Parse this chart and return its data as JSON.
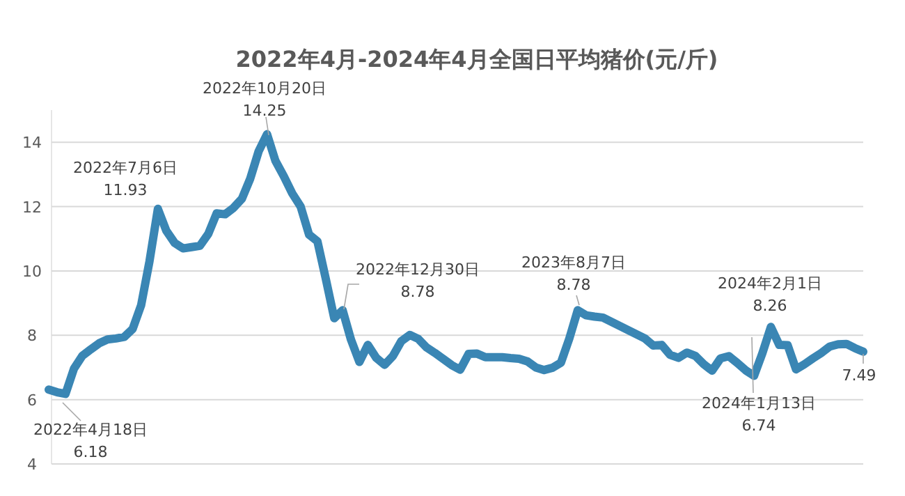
{
  "chart_data": {
    "type": "line",
    "title": "2022年4月-2024年4月全国日平均猪价(元/斤)",
    "grid": "y",
    "tick_labels": "y",
    "ylim": [
      4,
      15
    ],
    "yticks": [
      4,
      6,
      8,
      10,
      12,
      14
    ],
    "categories": [
      null,
      null,
      null,
      null,
      null,
      null,
      null,
      null,
      null,
      null,
      null,
      null,
      null,
      null,
      null,
      null,
      null,
      null,
      null,
      null,
      null,
      null,
      null,
      null,
      null,
      null,
      null,
      null,
      null,
      null,
      null,
      null,
      null,
      null,
      null,
      null,
      null,
      null,
      null,
      null,
      null,
      null,
      null,
      null,
      null,
      null,
      null,
      null,
      null,
      null,
      null,
      null,
      null,
      null,
      null,
      null,
      null,
      null,
      null,
      null,
      null,
      null,
      null,
      null,
      null,
      null,
      null,
      null,
      null,
      null,
      null,
      null,
      null,
      null,
      null,
      null,
      null,
      null,
      null,
      null,
      null,
      null,
      null,
      null,
      null,
      null,
      null,
      null,
      null,
      null,
      null,
      null,
      null,
      null,
      null,
      null,
      null,
      null
    ],
    "series": [
      {
        "color": "#3a86b4",
        "values": [
          6.31,
          6.23,
          6.18,
          6.96,
          7.36,
          7.56,
          7.75,
          7.87,
          7.9,
          7.95,
          8.2,
          8.93,
          10.3,
          11.93,
          11.25,
          10.87,
          10.7,
          10.74,
          10.78,
          11.15,
          11.79,
          11.76,
          11.96,
          12.24,
          12.87,
          13.72,
          14.25,
          13.42,
          12.94,
          12.41,
          12.0,
          11.13,
          10.92,
          9.75,
          8.53,
          8.78,
          7.86,
          7.17,
          7.7,
          7.3,
          7.08,
          7.36,
          7.82,
          8.01,
          7.89,
          7.62,
          7.45,
          7.26,
          7.07,
          6.93,
          7.42,
          7.43,
          7.32,
          7.32,
          7.32,
          7.29,
          7.27,
          7.19,
          7.0,
          6.92,
          6.99,
          7.15,
          7.9,
          8.78,
          8.62,
          8.58,
          8.55,
          8.42,
          8.29,
          8.16,
          8.03,
          7.9,
          7.68,
          7.7,
          7.39,
          7.3,
          7.46,
          7.36,
          7.1,
          6.9,
          7.28,
          7.35,
          7.14,
          6.91,
          6.74,
          7.45,
          8.26,
          7.7,
          7.69,
          6.94,
          7.1,
          7.28,
          7.45,
          7.65,
          7.72,
          7.73,
          7.6,
          7.49
        ]
      }
    ],
    "annotations": [
      "2022年4月18日\n6.18",
      "2022年7月6日\n11.93",
      "2022年10月20日\n14.25",
      "2022年12月30日\n8.78",
      "2023年8月7日\n8.78",
      "2024年1月13日\n6.74",
      "2024年2月1日\n8.26",
      "7.49"
    ]
  }
}
